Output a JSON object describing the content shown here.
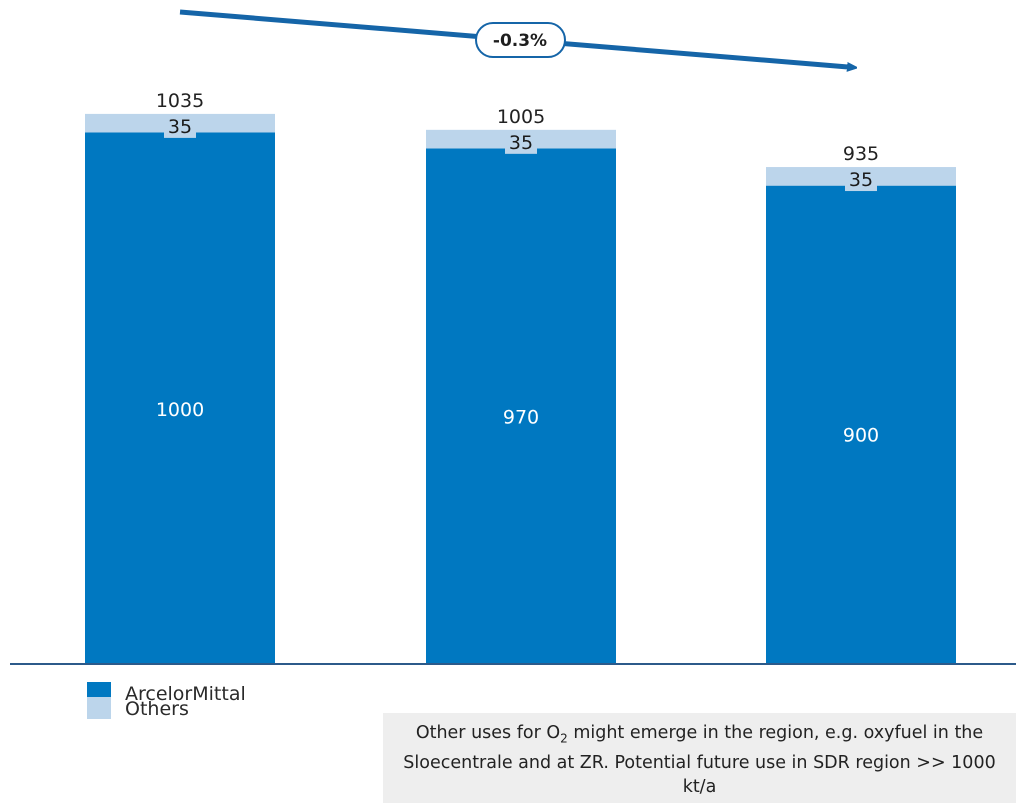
{
  "chart_data": {
    "type": "bar",
    "stacked": true,
    "categories": [
      "",
      "",
      ""
    ],
    "series": [
      {
        "name": "ArcelorMittal",
        "color": "#0078c1",
        "values": [
          1000,
          970,
          900
        ]
      },
      {
        "name": "Others",
        "color": "#bcd5eb",
        "values": [
          35,
          35,
          35
        ]
      }
    ],
    "totals": [
      1035,
      1005,
      935
    ],
    "ylim": [
      0,
      1200
    ],
    "grid": false,
    "legend": "bottom-left",
    "trend_annotation": "-0.3%"
  },
  "legend": {
    "items": [
      {
        "label": "ArcelorMittal",
        "color": "#0078c1"
      },
      {
        "label": "Others",
        "color": "#bcd5eb"
      }
    ]
  },
  "note": {
    "prefix": "Other uses for O",
    "subscript": "2",
    "suffix": " might emerge in the region, e.g. oxyfuel in the Sloecentrale and at ZR. Potential future use in SDR region >> 1000 kt/a"
  }
}
